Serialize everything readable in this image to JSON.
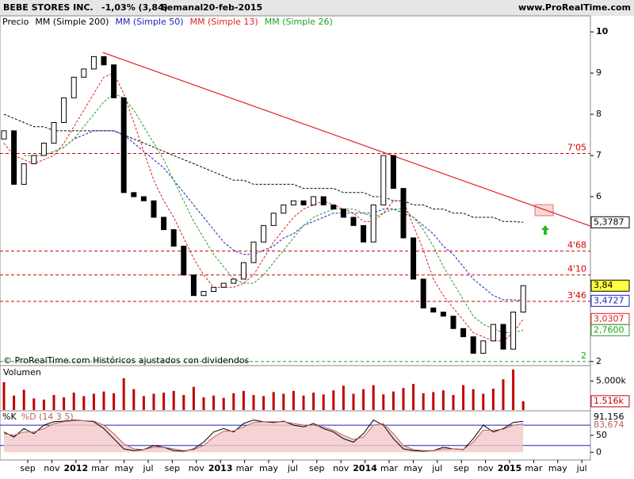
{
  "header": {
    "symbol": "BEBE STORES INC.",
    "change": "-1,03% (3,84)",
    "period": "Semanal",
    "date": "20-feb-2015",
    "site": "www.ProRealTime.com"
  },
  "chart_data": {
    "type": "candlestick",
    "price_label": "Precio",
    "note": "© ProRealTime.com  Históricos ajustados con dividendos",
    "open": [
      7.4,
      7.6,
      6.3,
      6.8,
      7.0,
      7.3,
      7.8,
      8.4,
      8.9,
      9.1,
      9.4,
      9.2,
      8.4,
      6.1,
      6.0,
      5.9,
      5.5,
      5.2,
      4.8,
      4.1,
      3.6,
      3.7,
      3.8,
      3.9,
      4.0,
      4.4,
      4.9,
      5.3,
      5.6,
      5.8,
      5.9,
      5.8,
      6.0,
      5.8,
      5.7,
      5.5,
      5.3,
      4.9,
      5.8,
      7.0,
      6.2,
      5.0,
      4.0,
      3.3,
      3.2,
      3.1,
      2.8,
      2.6,
      2.2,
      2.5,
      2.9,
      2.3,
      3.2
    ],
    "close": [
      7.6,
      6.3,
      6.8,
      7.0,
      7.3,
      7.8,
      8.4,
      8.9,
      9.1,
      9.4,
      9.2,
      8.4,
      6.1,
      6.0,
      5.9,
      5.5,
      5.2,
      4.8,
      4.1,
      3.6,
      3.7,
      3.8,
      3.9,
      4.0,
      4.4,
      4.9,
      5.3,
      5.6,
      5.8,
      5.9,
      5.8,
      6.0,
      5.8,
      5.7,
      5.5,
      5.3,
      4.9,
      5.8,
      7.0,
      6.2,
      5.0,
      4.0,
      3.3,
      3.2,
      3.1,
      2.8,
      2.6,
      2.2,
      2.5,
      2.9,
      2.3,
      3.2,
      3.84
    ],
    "series": [
      {
        "name": "MM (Simple 200)",
        "color": "#000000",
        "values": [
          8.0,
          7.9,
          7.8,
          7.7,
          7.7,
          7.6,
          7.6,
          7.6,
          7.6,
          7.6,
          7.6,
          7.6,
          7.5,
          7.4,
          7.3,
          7.2,
          7.1,
          7.0,
          6.9,
          6.8,
          6.7,
          6.6,
          6.5,
          6.4,
          6.4,
          6.3,
          6.3,
          6.3,
          6.3,
          6.3,
          6.2,
          6.2,
          6.2,
          6.2,
          6.1,
          6.1,
          6.1,
          6.0,
          6.0,
          5.9,
          5.9,
          5.8,
          5.8,
          5.7,
          5.7,
          5.6,
          5.6,
          5.5,
          5.5,
          5.5,
          5.4,
          5.4,
          5.3787
        ]
      },
      {
        "name": "MM (Simple 50)",
        "color": "#2020c0",
        "values": [
          null,
          null,
          null,
          null,
          7.0,
          7.1,
          7.2,
          7.4,
          7.5,
          7.6,
          7.6,
          7.6,
          7.5,
          7.3,
          7.1,
          6.9,
          6.7,
          6.4,
          6.1,
          5.8,
          5.5,
          5.2,
          4.9,
          4.7,
          4.6,
          4.6,
          4.7,
          4.8,
          5.0,
          5.1,
          5.3,
          5.4,
          5.5,
          5.6,
          5.6,
          5.6,
          5.6,
          5.6,
          5.7,
          5.7,
          5.6,
          5.5,
          5.3,
          5.1,
          4.8,
          4.6,
          4.3,
          4.0,
          3.8,
          3.6,
          3.5,
          3.5,
          3.4727
        ]
      },
      {
        "name": "MM (Simple 13)",
        "color": "#e02020",
        "values": [
          7.3,
          7.0,
          6.9,
          6.8,
          6.9,
          7.0,
          7.3,
          7.7,
          8.1,
          8.5,
          8.9,
          9.0,
          8.5,
          7.8,
          7.1,
          6.4,
          5.9,
          5.5,
          5.0,
          4.5,
          4.1,
          3.8,
          3.8,
          3.8,
          3.9,
          4.1,
          4.5,
          4.9,
          5.2,
          5.5,
          5.7,
          5.8,
          5.9,
          5.8,
          5.7,
          5.6,
          5.4,
          5.4,
          5.6,
          5.9,
          5.9,
          5.3,
          4.7,
          4.0,
          3.6,
          3.3,
          3.0,
          2.7,
          2.6,
          2.5,
          2.5,
          2.7,
          3.0307
        ]
      },
      {
        "name": "MM (Simple 26)",
        "color": "#20a020",
        "values": [
          null,
          null,
          7.0,
          7.0,
          7.0,
          7.1,
          7.2,
          7.4,
          7.7,
          8.0,
          8.3,
          8.5,
          8.4,
          8.1,
          7.7,
          7.3,
          6.9,
          6.4,
          5.9,
          5.4,
          5.0,
          4.6,
          4.3,
          4.0,
          3.9,
          3.9,
          4.1,
          4.4,
          4.7,
          5.0,
          5.3,
          5.5,
          5.6,
          5.7,
          5.7,
          5.7,
          5.6,
          5.5,
          5.6,
          5.7,
          5.7,
          5.5,
          5.2,
          4.8,
          4.3,
          3.9,
          3.5,
          3.1,
          2.9,
          2.8,
          2.7,
          2.7,
          2.76
        ]
      }
    ],
    "ylim": [
      1.92,
      10.35
    ],
    "yticks": [
      2,
      6,
      7,
      8,
      9,
      10
    ],
    "levels": [
      {
        "value": 7.05,
        "label": "7'05",
        "color": "#d00000"
      },
      {
        "value": 4.68,
        "label": "4'68",
        "color": "#d00000"
      },
      {
        "value": 4.1,
        "label": "4'10",
        "color": "#d00000"
      },
      {
        "value": 3.46,
        "label": "3'46",
        "color": "#d00000"
      },
      {
        "value": 2,
        "label": "2",
        "color": "#20a020"
      }
    ],
    "value_boxes": [
      {
        "value": 5.3787,
        "label": "5,3787",
        "color": "#000000",
        "bg": "#ffffff"
      },
      {
        "value": 3.84,
        "label": "3,84",
        "color": "#000000",
        "bg": "#ffff40"
      },
      {
        "value": 3.4727,
        "label": "3,4727",
        "color": "#2020c0",
        "bg": "#ffffff"
      },
      {
        "value": 3.0307,
        "label": "3,0307",
        "color": "#e02020",
        "bg": "#ffffff"
      },
      {
        "value": 2.76,
        "label": "2,7600",
        "color": "#20a020",
        "bg": "#ffffff"
      }
    ],
    "trendline": {
      "color": "#e02020",
      "points": [
        [
          9.9,
          9.5
        ],
        [
          58.7,
          5.29
        ]
      ]
    },
    "x_labels": [
      "sep",
      "nov",
      "2012",
      "mar",
      "may",
      "jul",
      "sep",
      "nov",
      "2013",
      "mar",
      "may",
      "jul",
      "sep",
      "nov",
      "2014",
      "mar",
      "may",
      "jul",
      "sep",
      "nov",
      "2015",
      "mar",
      "may",
      "jul"
    ],
    "volume": {
      "title": "Volumen",
      "color": "#c00000",
      "values": [
        4800,
        2500,
        3500,
        2000,
        1800,
        2600,
        2200,
        3000,
        2400,
        2800,
        3200,
        2900,
        5500,
        3600,
        2400,
        2800,
        3000,
        3300,
        2600,
        4000,
        2200,
        2500,
        2100,
        2900,
        3300,
        2600,
        2400,
        3100,
        2800,
        3300,
        2500,
        3000,
        2700,
        3400,
        4200,
        2800,
        3600,
        4300,
        2700,
        3200,
        3800,
        4500,
        2900,
        3100,
        3400,
        2600,
        4300,
        3600,
        2800,
        3700,
        5300,
        7000,
        1516
      ],
      "ylim": [
        0,
        7400
      ],
      "yticks": [
        {
          "value": 5000,
          "label": "5.000k"
        }
      ],
      "value_box": {
        "value": 1516,
        "label": "1.516k"
      }
    },
    "stochastic": {
      "ylim": [
        -25,
        120
      ],
      "yticks": [
        0,
        50
      ],
      "levels": [
        20,
        80
      ],
      "series": [
        {
          "name": "%K",
          "color": "#000000",
          "values": [
            60,
            45,
            70,
            55,
            80,
            90,
            92,
            95,
            93,
            90,
            70,
            40,
            10,
            5,
            8,
            20,
            15,
            5,
            3,
            10,
            30,
            60,
            70,
            60,
            85,
            95,
            90,
            88,
            92,
            80,
            75,
            85,
            70,
            60,
            40,
            30,
            55,
            95,
            80,
            40,
            10,
            5,
            3,
            5,
            15,
            10,
            8,
            40,
            80,
            60,
            70,
            88,
            91.156
          ],
          "value_box": {
            "value": 91.156,
            "label": "91,156"
          }
        },
        {
          "name": "%D (14 3 5)",
          "color": "#e07070",
          "values": [
            55,
            50,
            60,
            60,
            70,
            85,
            90,
            93,
            93,
            92,
            80,
            55,
            25,
            10,
            8,
            15,
            15,
            10,
            5,
            8,
            20,
            45,
            62,
            63,
            75,
            88,
            90,
            90,
            90,
            85,
            80,
            80,
            75,
            65,
            50,
            38,
            45,
            80,
            85,
            55,
            20,
            8,
            5,
            5,
            10,
            10,
            9,
            30,
            65,
            65,
            68,
            80,
            83.674
          ],
          "value_box": {
            "value": 83.674,
            "label": "83,674"
          }
        }
      ]
    }
  }
}
